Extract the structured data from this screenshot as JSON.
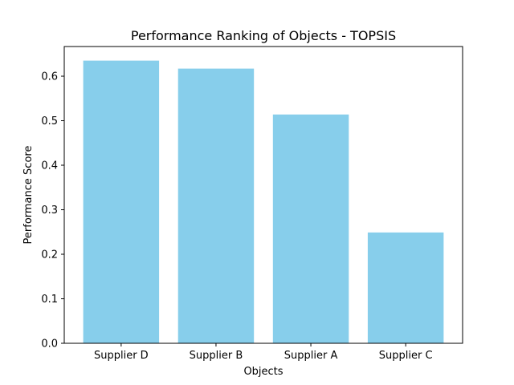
{
  "chart_data": {
    "type": "bar",
    "title": "Performance Ranking of Objects - TOPSIS",
    "xlabel": "Objects",
    "ylabel": "Performance Score",
    "categories": [
      "Supplier D",
      "Supplier B",
      "Supplier A",
      "Supplier C"
    ],
    "values": [
      0.635,
      0.617,
      0.514,
      0.249
    ],
    "ylim": [
      0,
      0.6667
    ],
    "yticks": [
      0.0,
      0.1,
      0.2,
      0.3,
      0.4,
      0.5,
      0.6
    ],
    "ytick_labels": [
      "0.0",
      "0.1",
      "0.2",
      "0.3",
      "0.4",
      "0.5",
      "0.6"
    ],
    "grid": false,
    "legend": "none",
    "colors": {
      "bar": "#87ceeb",
      "axis": "#000000"
    }
  }
}
